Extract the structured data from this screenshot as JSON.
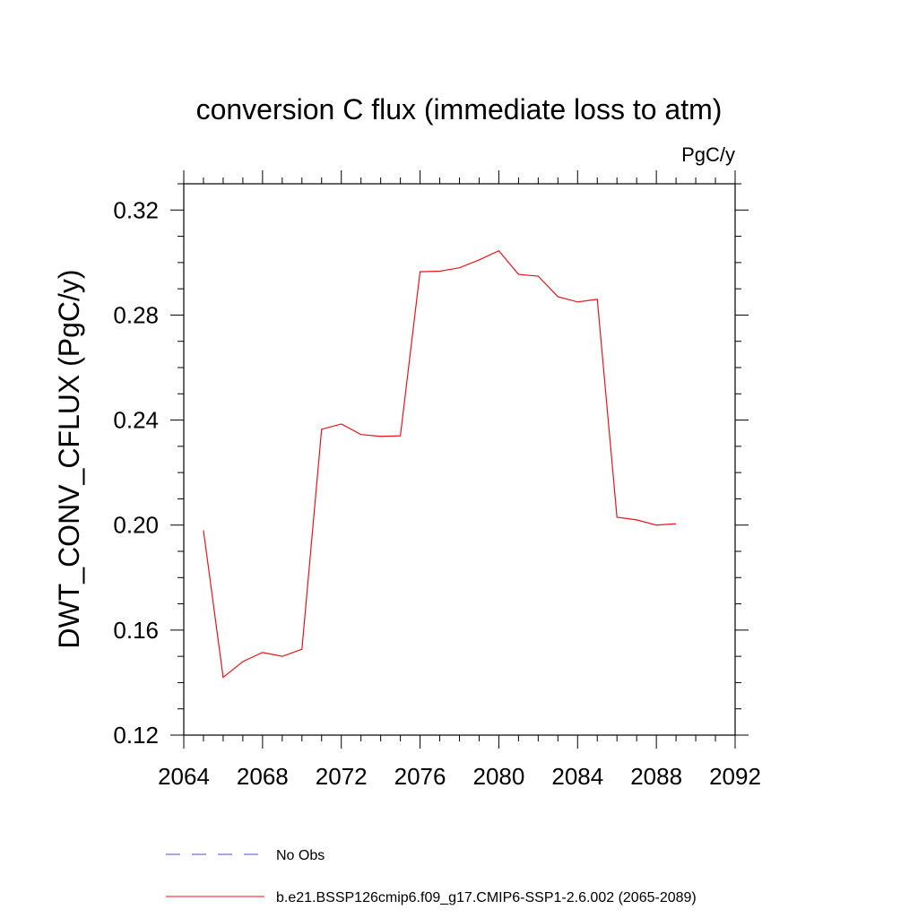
{
  "chart_data": {
    "type": "line",
    "title": "conversion C flux (immediate loss to atm)",
    "units_label": "PgC/y",
    "xlabel": "",
    "ylabel": "DWT_CONV_CFLUX  (PgC/y)",
    "xlim": [
      2064,
      2092
    ],
    "ylim": [
      0.12,
      0.33
    ],
    "xticks": [
      "2064",
      "2068",
      "2072",
      "2076",
      "2080",
      "2084",
      "2088",
      "2092"
    ],
    "yticks": [
      "0.12",
      "0.16",
      "0.20",
      "0.24",
      "0.28",
      "0.32"
    ],
    "grid": false,
    "legend_position": "bottom",
    "series": [
      {
        "name": "No Obs",
        "color": "#4b4bd6",
        "style": "dashed",
        "x": [],
        "values": []
      },
      {
        "name": "b.e21.BSSP126cmip6.f09_g17.CMIP6-SSP1-2.6.002 (2065-2089)",
        "color": "#e8141e",
        "style": "solid",
        "x": [
          2065,
          2066,
          2067,
          2068,
          2069,
          2070,
          2071,
          2072,
          2073,
          2074,
          2075,
          2076,
          2077,
          2078,
          2079,
          2080,
          2081,
          2082,
          2083,
          2084,
          2085,
          2086,
          2087,
          2088,
          2089
        ],
        "values": [
          0.198,
          0.142,
          0.148,
          0.1515,
          0.15,
          0.1527,
          0.2365,
          0.2385,
          0.2345,
          0.2338,
          0.234,
          0.2965,
          0.2967,
          0.298,
          0.301,
          0.3045,
          0.2955,
          0.2948,
          0.287,
          0.285,
          0.286,
          0.203,
          0.202,
          0.2,
          0.2005
        ]
      }
    ]
  }
}
